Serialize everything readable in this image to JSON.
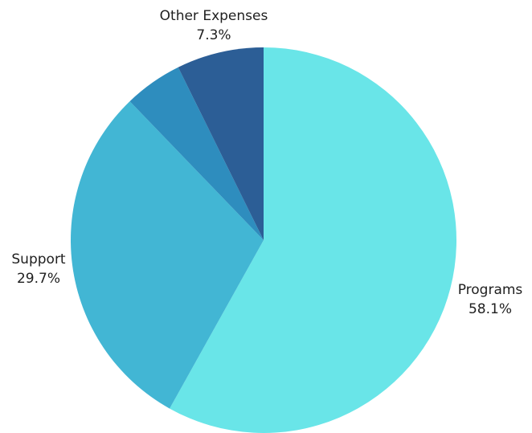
{
  "chart_data": {
    "type": "pie",
    "start_angle_deg": 0,
    "direction": "clockwise",
    "slices": [
      {
        "key": "programs",
        "name": "Programs",
        "value": 58.1,
        "percent_label": "58.1%",
        "color": "#69E5E8",
        "labeled": true
      },
      {
        "key": "support",
        "name": "Support",
        "value": 29.7,
        "percent_label": "29.7%",
        "color": "#42B6D4",
        "labeled": true
      },
      {
        "key": "unlabeled",
        "name": "",
        "value": 4.9,
        "percent_label": "",
        "color": "#2E8DBE",
        "labeled": false
      },
      {
        "key": "other-expenses",
        "name": "Other Expenses",
        "value": 7.3,
        "percent_label": "7.3%",
        "color": "#2C5E96",
        "labeled": true
      }
    ]
  }
}
